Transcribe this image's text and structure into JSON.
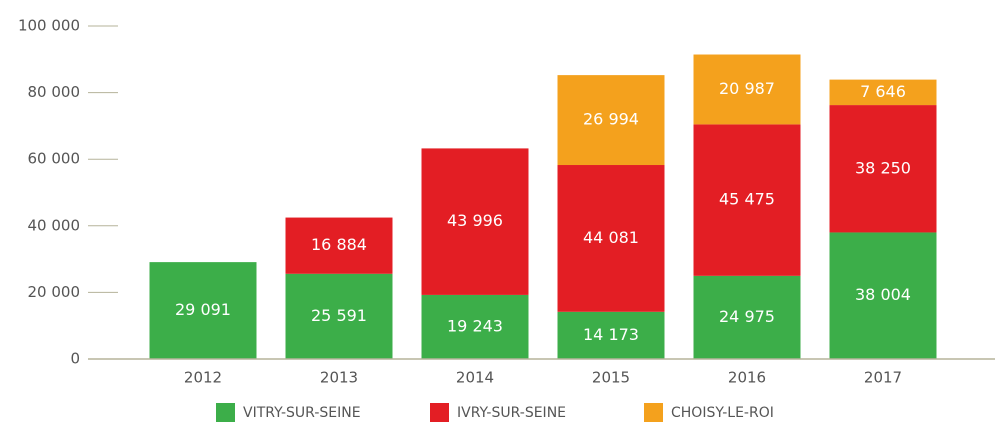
{
  "chart_data": {
    "type": "bar",
    "stacked": true,
    "categories": [
      "2012",
      "2013",
      "2014",
      "2015",
      "2016",
      "2017"
    ],
    "series": [
      {
        "name": "VITRY-SUR-SEINE",
        "color": "#3cae49",
        "values": [
          29091,
          25591,
          19243,
          14173,
          24975,
          38004
        ],
        "value_labels": [
          "29 091",
          "25 591",
          "19 243",
          "14 173",
          "24 975",
          "38 004"
        ]
      },
      {
        "name": "IVRY-SUR-SEINE",
        "color": "#e31e24",
        "values": [
          null,
          16884,
          43996,
          44081,
          45475,
          38250
        ],
        "value_labels": [
          null,
          "16 884",
          "43 996",
          "44 081",
          "45 475",
          "38 250"
        ]
      },
      {
        "name": "CHOISY-LE-ROI",
        "color": "#f4a11d",
        "values": [
          null,
          null,
          null,
          26994,
          20987,
          7646
        ],
        "value_labels": [
          null,
          null,
          null,
          "26 994",
          "20 987",
          "7 646"
        ]
      }
    ],
    "ylim": [
      0,
      100000
    ],
    "yticks": [
      0,
      {
        "value": 20000,
        "label": "20 000"
      },
      {
        "value": 40000,
        "label": "40 000"
      },
      {
        "value": 60000,
        "label": "60 000"
      },
      {
        "value": 80000,
        "label": "80 000"
      },
      {
        "value": 100000,
        "label": "100 000"
      }
    ],
    "legend": "bottom"
  }
}
